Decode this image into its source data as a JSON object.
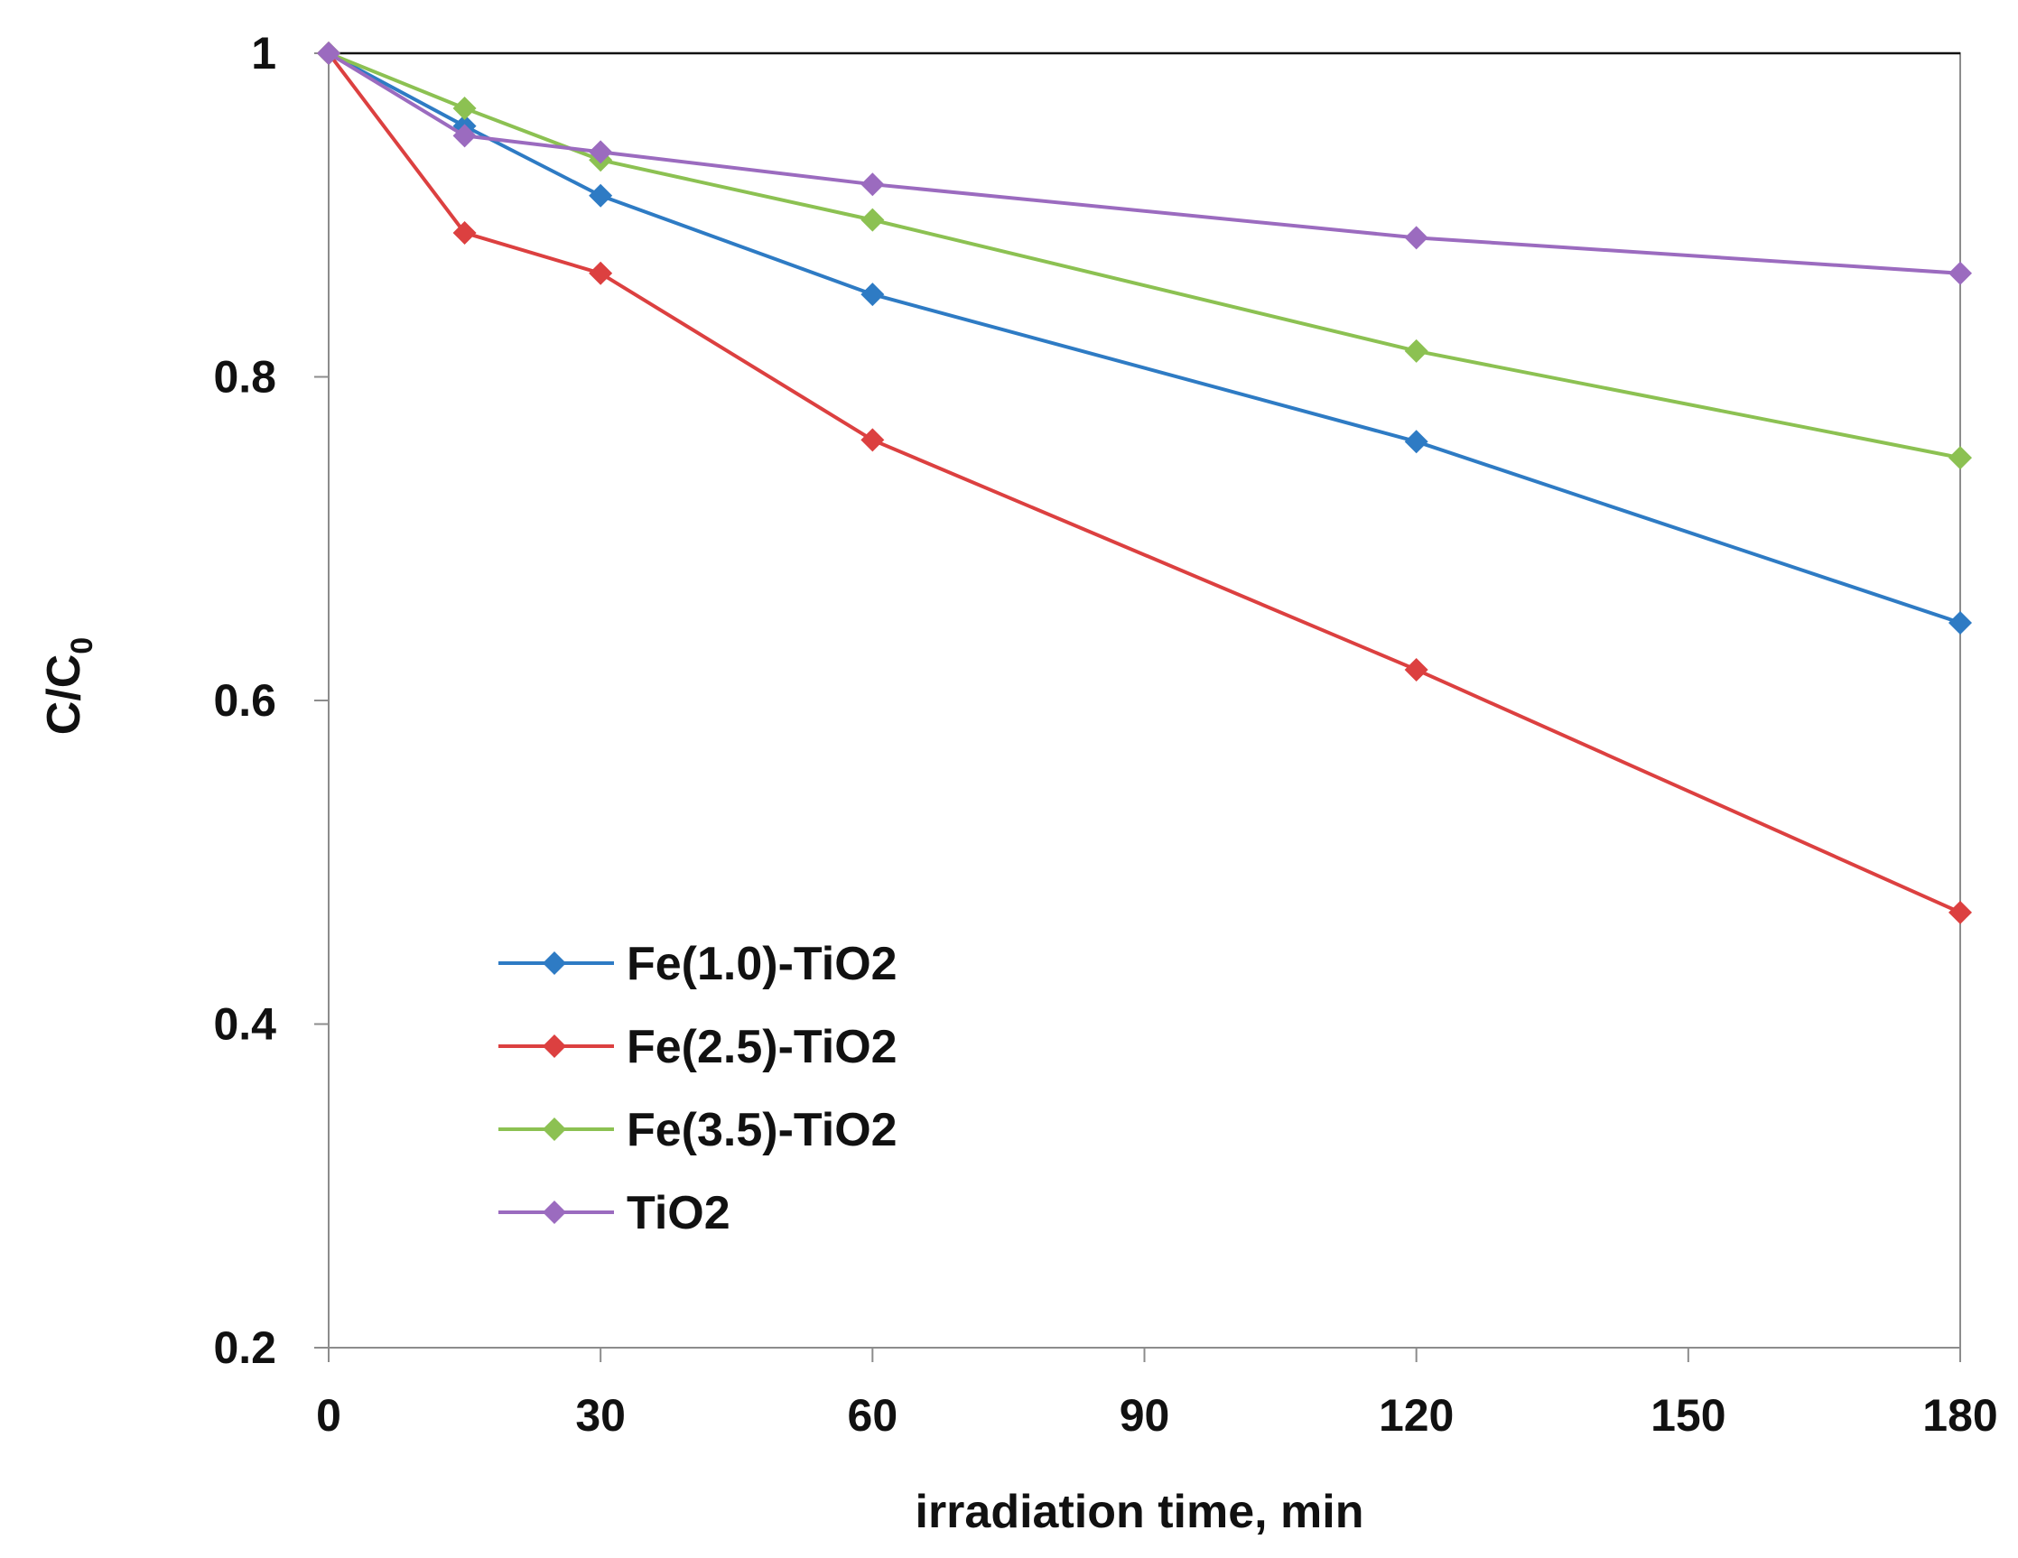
{
  "chart_data": {
    "type": "line",
    "title": "",
    "xlabel": "irradiation  time, min",
    "ylabel_main": "C/C",
    "ylabel_sub": "0",
    "xlim": [
      0,
      180
    ],
    "ylim": [
      0.2,
      1.0
    ],
    "xticks": [
      0,
      30,
      60,
      90,
      120,
      150,
      180
    ],
    "xtick_labels": [
      "0",
      "30",
      "60",
      "90",
      "120",
      "150",
      "180"
    ],
    "yticks": [
      0.2,
      0.4,
      0.6,
      0.8,
      1.0
    ],
    "ytick_labels": [
      "0.2",
      "0.4",
      "0.6",
      "0.8",
      "1"
    ],
    "grid": false,
    "legend_position": "lower-left",
    "x": [
      0,
      15,
      30,
      60,
      120,
      180
    ],
    "series": [
      {
        "name": "Fe(1.0)-TiO2",
        "color": "#2E7BC4",
        "marker": "diamond",
        "values": [
          1.0,
          0.955,
          0.912,
          0.851,
          0.76,
          0.648
        ]
      },
      {
        "name": "Fe(2.5)-TiO2",
        "color": "#DC4040",
        "marker": "diamond",
        "values": [
          1.0,
          0.889,
          0.864,
          0.761,
          0.619,
          0.469
        ]
      },
      {
        "name": "Fe(3.5)-TiO2",
        "color": "#8CC152",
        "marker": "diamond",
        "values": [
          1.0,
          0.966,
          0.934,
          0.897,
          0.816,
          0.75
        ]
      },
      {
        "name": "TiO2",
        "color": "#9B6BBF",
        "marker": "diamond",
        "values": [
          1.0,
          0.949,
          0.939,
          0.919,
          0.886,
          0.864
        ]
      }
    ]
  }
}
